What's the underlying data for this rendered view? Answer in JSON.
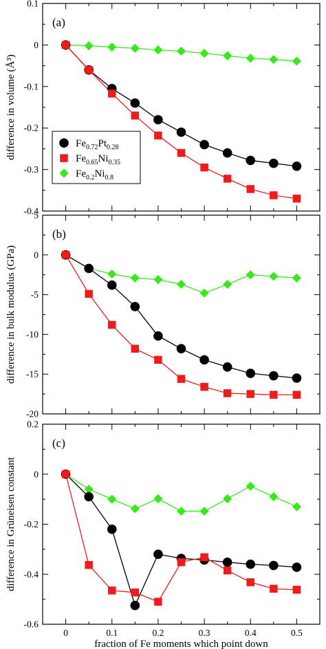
{
  "chart_data": [
    {
      "type": "line",
      "panel_label": "(a)",
      "ylabel": "difference in volume (Å³)",
      "xlabel": "",
      "xlim": [
        -0.05,
        0.55
      ],
      "ylim": [
        -0.4,
        0.1
      ],
      "yticks": [
        "0.1",
        "0",
        "-0.1",
        "-0.2",
        "-0.3",
        "-0.4"
      ],
      "ytick_values": [
        0.1,
        0,
        -0.1,
        -0.2,
        -0.3,
        -0.4
      ],
      "xticks": [
        "0",
        "0.1",
        "0.2",
        "0.3",
        "0.4",
        "0.5"
      ],
      "xtick_values": [
        0,
        0.1,
        0.2,
        0.3,
        0.4,
        0.5
      ],
      "show_xtick_labels": false,
      "x": [
        0,
        0.05,
        0.1,
        0.15,
        0.2,
        0.25,
        0.3,
        0.35,
        0.4,
        0.45,
        0.5
      ],
      "series": [
        {
          "name": "Fe0.72Pt0.28",
          "values": [
            0,
            -0.06,
            -0.105,
            -0.14,
            -0.18,
            -0.21,
            -0.24,
            -0.26,
            -0.278,
            -0.285,
            -0.292
          ]
        },
        {
          "name": "Fe0.65Ni0.35",
          "values": [
            0,
            -0.06,
            -0.117,
            -0.17,
            -0.218,
            -0.26,
            -0.295,
            -0.322,
            -0.347,
            -0.362,
            -0.37
          ]
        },
        {
          "name": "Fe0.2Ni0.8",
          "values": [
            0,
            -0.002,
            -0.005,
            -0.008,
            -0.012,
            -0.015,
            -0.02,
            -0.026,
            -0.032,
            -0.035,
            -0.039
          ]
        }
      ],
      "legend": {
        "placement": "left-middle",
        "entries": [
          {
            "base1": "Fe",
            "sub1": "0.72",
            "base2": "Pt",
            "sub2": "0.28"
          },
          {
            "base1": "Fe",
            "sub1": "0.65",
            "base2": "Ni",
            "sub2": "0.35"
          },
          {
            "base1": "Fe",
            "sub1": "0.2",
            "base2": "Ni",
            "sub2": "0.8"
          }
        ]
      }
    },
    {
      "type": "line",
      "panel_label": "(b)",
      "ylabel": "difference in bulk modulus (GPa)",
      "xlabel": "",
      "xlim": [
        -0.05,
        0.55
      ],
      "ylim": [
        -20,
        5
      ],
      "yticks": [
        "5",
        "0",
        "-5",
        "-10",
        "-15",
        "-20"
      ],
      "ytick_values": [
        5,
        0,
        -5,
        -10,
        -15,
        -20
      ],
      "xticks": [
        "0",
        "0.1",
        "0.2",
        "0.3",
        "0.4",
        "0.5"
      ],
      "xtick_values": [
        0,
        0.1,
        0.2,
        0.3,
        0.4,
        0.5
      ],
      "show_xtick_labels": false,
      "x": [
        0,
        0.05,
        0.1,
        0.15,
        0.2,
        0.25,
        0.3,
        0.35,
        0.4,
        0.45,
        0.5
      ],
      "series": [
        {
          "name": "Fe0.72Pt0.28",
          "values": [
            0,
            -1.7,
            -3.8,
            -6.5,
            -10.2,
            -11.8,
            -13.2,
            -14.1,
            -14.9,
            -15.2,
            -15.5
          ]
        },
        {
          "name": "Fe0.65Ni0.35",
          "values": [
            0,
            -4.9,
            -8.8,
            -11.8,
            -13.2,
            -15.6,
            -16.6,
            -17.4,
            -17.5,
            -17.6,
            -17.6
          ]
        },
        {
          "name": "Fe0.2Ni0.8",
          "values": [
            0,
            -1.7,
            -2.4,
            -2.9,
            -3.1,
            -3.7,
            -4.8,
            -3.7,
            -2.5,
            -2.7,
            -2.9
          ]
        }
      ]
    },
    {
      "type": "line",
      "panel_label": "(c)",
      "ylabel": "difference in Grüneisen constant",
      "xlabel": "fraction of Fe moments which point down",
      "xlim": [
        -0.05,
        0.55
      ],
      "ylim": [
        -0.6,
        0.2
      ],
      "yticks": [
        "0.2",
        "0",
        "-0.2",
        "-0.4",
        "-0.6"
      ],
      "ytick_values": [
        0.2,
        0,
        -0.2,
        -0.4,
        -0.6
      ],
      "xticks": [
        "0",
        "0.1",
        "0.2",
        "0.3",
        "0.4",
        "0.5"
      ],
      "xtick_values": [
        0,
        0.1,
        0.2,
        0.3,
        0.4,
        0.5
      ],
      "show_xtick_labels": true,
      "x": [
        0,
        0.05,
        0.1,
        0.15,
        0.2,
        0.25,
        0.3,
        0.35,
        0.4,
        0.45,
        0.5
      ],
      "series": [
        {
          "name": "Fe0.72Pt0.28",
          "values": [
            0,
            -0.09,
            -0.22,
            -0.525,
            -0.32,
            -0.337,
            -0.343,
            -0.352,
            -0.36,
            -0.365,
            -0.372
          ]
        },
        {
          "name": "Fe0.65Ni0.35",
          "values": [
            0,
            -0.363,
            -0.465,
            -0.473,
            -0.51,
            -0.352,
            -0.332,
            -0.385,
            -0.432,
            -0.458,
            -0.462
          ]
        },
        {
          "name": "Fe0.2Ni0.8",
          "values": [
            0,
            -0.06,
            -0.1,
            -0.138,
            -0.098,
            -0.148,
            -0.148,
            -0.098,
            -0.048,
            -0.09,
            -0.13
          ]
        }
      ]
    }
  ],
  "series_styles": [
    {
      "marker": "circle",
      "fill": "#000000",
      "line": "#000000"
    },
    {
      "marker": "square",
      "fill": "#ee1c1c",
      "line": "#ee1c1c"
    },
    {
      "marker": "diamond",
      "fill": "#39e81c",
      "line": "#39e81c"
    }
  ]
}
